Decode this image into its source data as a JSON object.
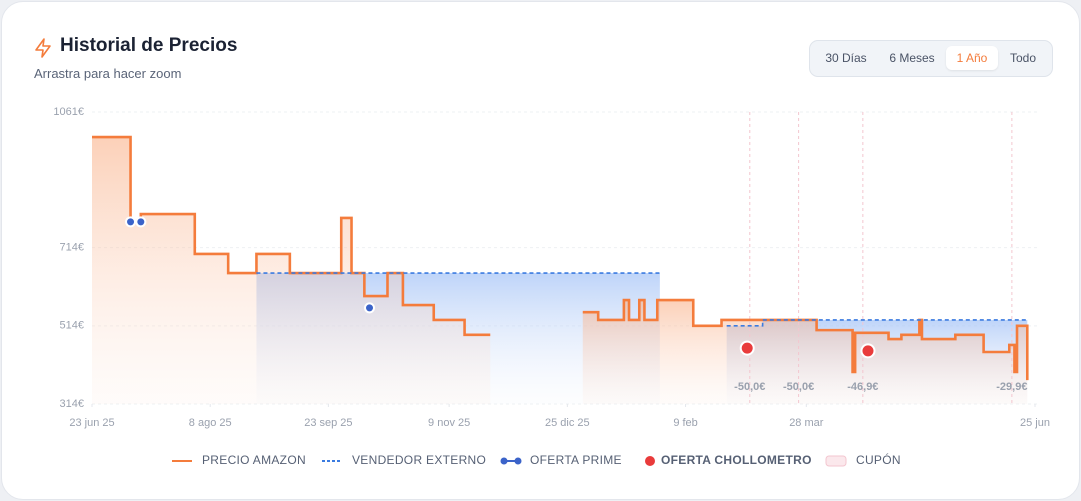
{
  "header": {
    "title": "Historial de Precios",
    "subtitle": "Arrastra para hacer zoom",
    "range_buttons": [
      "30 Días",
      "6 Meses",
      "1 Año",
      "Todo"
    ]
  },
  "chart_data": {
    "type": "line",
    "xlim": [
      0,
      367
    ],
    "ylim": [
      314,
      1061
    ],
    "xticks": [
      {
        "value": 0,
        "label": "23 jun 25"
      },
      {
        "value": 46,
        "label": "8 ago 25"
      },
      {
        "value": 92,
        "label": "23 sep 25"
      },
      {
        "value": 139,
        "label": "9 nov 25"
      },
      {
        "value": 185,
        "label": "25 dic 25"
      },
      {
        "value": 231,
        "label": "9 feb"
      },
      {
        "value": 278,
        "label": "28 mar"
      },
      {
        "value": 367,
        "label": "25 jun"
      }
    ],
    "yticks": [
      {
        "value": 314,
        "label": "314€"
      },
      {
        "value": 514,
        "label": "514€"
      },
      {
        "value": 714,
        "label": "714€"
      },
      {
        "value": 1061,
        "label": "1061€"
      }
    ],
    "grid": true,
    "series": [
      {
        "name": "PRECIO AMAZON",
        "color": "#f47c3c",
        "mode": "step",
        "x": [
          0,
          15,
          19,
          40,
          53,
          64,
          77,
          97,
          101,
          106,
          115,
          121,
          133,
          145,
          155,
          191,
          197,
          207,
          209,
          213,
          215,
          220,
          234,
          245,
          282,
          296,
          297,
          310,
          315,
          322,
          323,
          336,
          347,
          357,
          359,
          360,
          364
        ],
        "values": [
          997,
          780,
          800,
          698,
          649,
          698,
          649,
          790,
          649,
          590,
          649,
          567,
          529,
          491,
          null,
          549,
          529,
          580,
          529,
          580,
          529,
          580,
          514,
          529,
          503,
          396,
          496,
          480,
          491,
          529,
          480,
          491,
          447,
          465,
          396,
          514,
          375
        ]
      },
      {
        "name": "VENDEDOR EXTERNO",
        "color": "#3b7be0",
        "mode": "step",
        "dashed": true,
        "x": [
          64,
          221,
          247,
          261,
          364
        ],
        "values": [
          649,
          null,
          514,
          529,
          529
        ]
      },
      {
        "name": "OFERTA PRIME",
        "color": "#3b63c9",
        "mode": "points",
        "x": [
          15,
          19,
          108
        ],
        "values": [
          780,
          780,
          560
        ]
      },
      {
        "name": "OFERTA CHOLLOMETRO",
        "color": "#e93b3b",
        "mode": "points",
        "x": [
          255,
          302
        ],
        "values": [
          457,
          450
        ]
      },
      {
        "name": "CUPÓN",
        "color": "#f3c6cf",
        "mode": "coupon",
        "x": [
          256,
          275,
          300,
          358
        ],
        "labels": [
          "-50,0€",
          "-50,0€",
          "-46,9€",
          "-29,9€"
        ]
      }
    ]
  }
}
